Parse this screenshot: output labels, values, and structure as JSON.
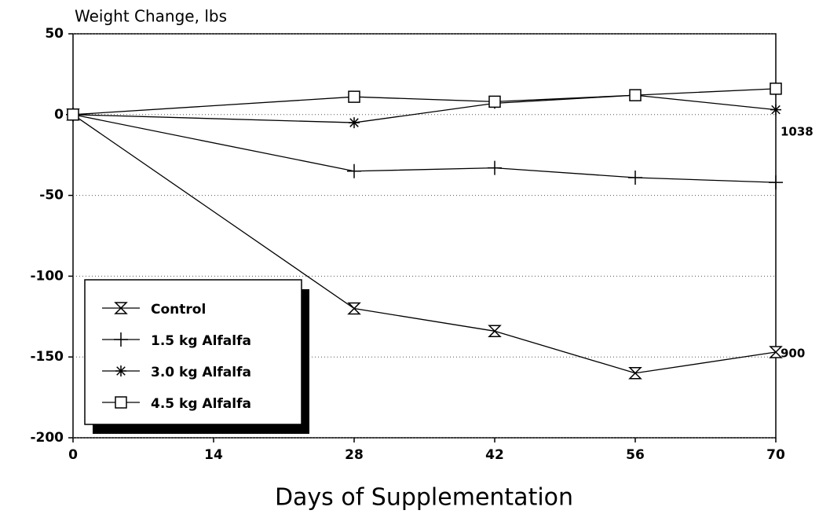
{
  "chart_data": {
    "type": "line",
    "y_label": "Weight Change, lbs",
    "x_label": "Days of Supplementation",
    "x": [
      0,
      28,
      42,
      56,
      70
    ],
    "series": [
      {
        "name": "Control",
        "color": "#000000",
        "marker": "hourglass",
        "values": [
          0,
          -120,
          -134,
          -160,
          -147
        ]
      },
      {
        "name": "1.5 kg Alfalfa",
        "color": "#000000",
        "marker": "plus",
        "values": [
          0,
          -35,
          -33,
          -39,
          -42
        ]
      },
      {
        "name": "3.0 kg Alfalfa",
        "color": "#000000",
        "marker": "asterisk",
        "values": [
          0,
          -5,
          7,
          12,
          3
        ]
      },
      {
        "name": "4.5 kg Alfalfa",
        "color": "#000000",
        "marker": "square",
        "values": [
          0,
          11,
          8,
          12,
          16
        ]
      }
    ],
    "annotations": [
      {
        "text": "1038",
        "x": 70,
        "y": -8
      },
      {
        "text": "900",
        "x": 70,
        "y": -145
      }
    ],
    "xlim": [
      0,
      70
    ],
    "xticks": [
      0,
      14,
      28,
      42,
      56,
      70
    ],
    "ylim": [
      -200,
      50
    ],
    "yticks": [
      50,
      0,
      -50,
      -100,
      -150,
      -200
    ],
    "grid": true,
    "legend": "lower left"
  }
}
